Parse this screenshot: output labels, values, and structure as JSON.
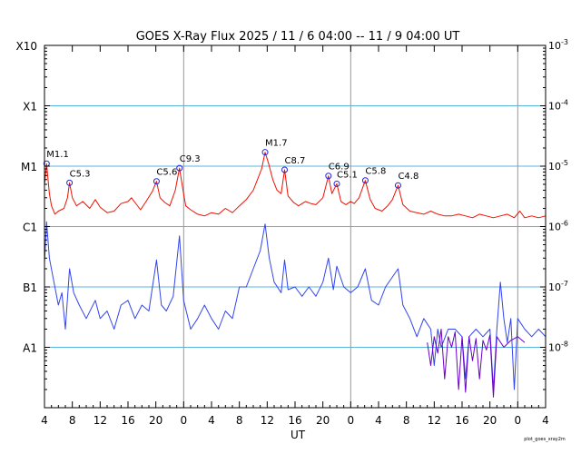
{
  "chart_data": {
    "type": "line",
    "title": "GOES X-Ray Flux   2025 / 11 /  6   04:00 -- 11 /  9   04:00   UT",
    "xlabel": "UT",
    "ylabel": "",
    "x_range_hours": [
      0,
      72
    ],
    "x_ticks": [
      "4",
      "8",
      "12",
      "16",
      "20",
      "0",
      "4",
      "8",
      "12",
      "16",
      "20",
      "0",
      "4",
      "8",
      "12",
      "16",
      "20",
      "0",
      "4"
    ],
    "day_boundaries_hours": [
      20,
      44,
      68
    ],
    "y_scale": "log",
    "ylim": [
      1e-09,
      0.001
    ],
    "flare_class_labels": [
      {
        "label": "X10",
        "value": 0.001
      },
      {
        "label": "X1",
        "value": 0.0001
      },
      {
        "label": "M1",
        "value": 1e-05
      },
      {
        "label": "C1",
        "value": 1e-06
      },
      {
        "label": "B1",
        "value": 1e-07
      },
      {
        "label": "A1",
        "value": 1e-08
      }
    ],
    "right_axis_labels": [
      {
        "base": "10",
        "exp": "-3",
        "value": 0.001
      },
      {
        "base": "10",
        "exp": "-4",
        "value": 0.0001
      },
      {
        "base": "10",
        "exp": "-5",
        "value": 1e-05
      },
      {
        "base": "10",
        "exp": "-6",
        "value": 1e-06
      },
      {
        "base": "10",
        "exp": "-7",
        "value": 1e-07
      },
      {
        "base": "10",
        "exp": "-8",
        "value": 1e-08
      }
    ],
    "grid": true,
    "series": [
      {
        "color": "#ee1100",
        "points": [
          [
            0,
            4.8e-06
          ],
          [
            0.3,
            1.1e-05
          ],
          [
            0.7,
            3.5e-06
          ],
          [
            1,
            2.2e-06
          ],
          [
            1.5,
            1.6e-06
          ],
          [
            2,
            1.8e-06
          ],
          [
            2.8,
            2e-06
          ],
          [
            3.3,
            3e-06
          ],
          [
            3.6,
            5.3e-06
          ],
          [
            4,
            3e-06
          ],
          [
            4.6,
            2.2e-06
          ],
          [
            5.5,
            2.6e-06
          ],
          [
            6.5,
            2e-06
          ],
          [
            7.3,
            2.8e-06
          ],
          [
            8,
            2.1e-06
          ],
          [
            9,
            1.7e-06
          ],
          [
            10,
            1.8e-06
          ],
          [
            11,
            2.4e-06
          ],
          [
            12,
            2.6e-06
          ],
          [
            12.5,
            3e-06
          ],
          [
            13,
            2.5e-06
          ],
          [
            13.8,
            1.9e-06
          ],
          [
            14.5,
            2.5e-06
          ],
          [
            15.5,
            3.8e-06
          ],
          [
            16.1,
            5.6e-06
          ],
          [
            16.6,
            3e-06
          ],
          [
            17.3,
            2.5e-06
          ],
          [
            18,
            2.2e-06
          ],
          [
            18.8,
            4e-06
          ],
          [
            19.4,
            9.3e-06
          ],
          [
            19.9,
            4e-06
          ],
          [
            20.3,
            2.2e-06
          ],
          [
            21,
            1.9e-06
          ],
          [
            22,
            1.6e-06
          ],
          [
            23,
            1.5e-06
          ],
          [
            24,
            1.7e-06
          ],
          [
            25,
            1.6e-06
          ],
          [
            26,
            2e-06
          ],
          [
            27,
            1.7e-06
          ],
          [
            28,
            2.2e-06
          ],
          [
            29,
            2.8e-06
          ],
          [
            30,
            4e-06
          ],
          [
            30.6,
            6e-06
          ],
          [
            31.2,
            9e-06
          ],
          [
            31.7,
            1.7e-05
          ],
          [
            32.2,
            1.1e-05
          ],
          [
            32.8,
            6e-06
          ],
          [
            33.4,
            4e-06
          ],
          [
            34,
            3.5e-06
          ],
          [
            34.5,
            8.7e-06
          ],
          [
            35,
            3.2e-06
          ],
          [
            35.8,
            2.5e-06
          ],
          [
            36.5,
            2.2e-06
          ],
          [
            37.5,
            2.6e-06
          ],
          [
            38.3,
            2.4e-06
          ],
          [
            39,
            2.3e-06
          ],
          [
            40,
            3e-06
          ],
          [
            40.8,
            6.9e-06
          ],
          [
            41.3,
            3.5e-06
          ],
          [
            42,
            5.1e-06
          ],
          [
            42.6,
            2.6e-06
          ],
          [
            43.3,
            2.3e-06
          ],
          [
            44,
            2.6e-06
          ],
          [
            44.5,
            2.4e-06
          ],
          [
            45.2,
            3e-06
          ],
          [
            46.1,
            5.8e-06
          ],
          [
            46.8,
            2.8e-06
          ],
          [
            47.5,
            2e-06
          ],
          [
            48.5,
            1.8e-06
          ],
          [
            49.3,
            2.2e-06
          ],
          [
            50,
            2.8e-06
          ],
          [
            50.8,
            4.8e-06
          ],
          [
            51.5,
            2.3e-06
          ],
          [
            52.5,
            1.8e-06
          ],
          [
            53.5,
            1.7e-06
          ],
          [
            54.5,
            1.6e-06
          ],
          [
            55.5,
            1.8e-06
          ],
          [
            56.5,
            1.6e-06
          ],
          [
            57.5,
            1.5e-06
          ],
          [
            58.5,
            1.5e-06
          ],
          [
            59.5,
            1.6e-06
          ],
          [
            60.5,
            1.5e-06
          ],
          [
            61.5,
            1.4e-06
          ],
          [
            62.5,
            1.6e-06
          ],
          [
            63.5,
            1.5e-06
          ],
          [
            64.5,
            1.4e-06
          ],
          [
            65.5,
            1.5e-06
          ],
          [
            66.5,
            1.6e-06
          ],
          [
            67.5,
            1.4e-06
          ],
          [
            68.3,
            1.8e-06
          ],
          [
            69,
            1.4e-06
          ],
          [
            70,
            1.5e-06
          ],
          [
            71,
            1.4e-06
          ],
          [
            72,
            1.5e-06
          ]
        ]
      },
      {
        "color": "#3344ee",
        "points": [
          [
            0,
            2.5e-07
          ],
          [
            0.3,
            1.2e-06
          ],
          [
            0.7,
            3e-07
          ],
          [
            1.2,
            1.5e-07
          ],
          [
            2,
            5e-08
          ],
          [
            2.5,
            8e-08
          ],
          [
            3,
            2e-08
          ],
          [
            3.6,
            2e-07
          ],
          [
            4.2,
            8e-08
          ],
          [
            5,
            5e-08
          ],
          [
            6,
            3e-08
          ],
          [
            7.3,
            6e-08
          ],
          [
            8,
            3e-08
          ],
          [
            9,
            4e-08
          ],
          [
            10,
            2e-08
          ],
          [
            11,
            5e-08
          ],
          [
            12,
            6e-08
          ],
          [
            13,
            3e-08
          ],
          [
            14,
            5e-08
          ],
          [
            15,
            4e-08
          ],
          [
            16.1,
            2.8e-07
          ],
          [
            16.8,
            5e-08
          ],
          [
            17.5,
            4e-08
          ],
          [
            18.5,
            7e-08
          ],
          [
            19.4,
            7e-07
          ],
          [
            20,
            6e-08
          ],
          [
            21,
            2e-08
          ],
          [
            22,
            3e-08
          ],
          [
            23,
            5e-08
          ],
          [
            24,
            3e-08
          ],
          [
            25,
            2e-08
          ],
          [
            26,
            4e-08
          ],
          [
            27,
            3e-08
          ],
          [
            28,
            1e-07
          ],
          [
            29,
            1e-07
          ],
          [
            30,
            2e-07
          ],
          [
            31,
            4e-07
          ],
          [
            31.7,
            1.1e-06
          ],
          [
            32.3,
            3e-07
          ],
          [
            33,
            1.2e-07
          ],
          [
            34,
            8e-08
          ],
          [
            34.5,
            2.8e-07
          ],
          [
            35,
            9e-08
          ],
          [
            36,
            1e-07
          ],
          [
            37,
            7e-08
          ],
          [
            38,
            1e-07
          ],
          [
            39,
            7e-08
          ],
          [
            40,
            1.2e-07
          ],
          [
            40.8,
            3e-07
          ],
          [
            41.5,
            9e-08
          ],
          [
            42,
            2.2e-07
          ],
          [
            43,
            1e-07
          ],
          [
            44,
            8e-08
          ],
          [
            45,
            1e-07
          ],
          [
            46.1,
            2e-07
          ],
          [
            47,
            6e-08
          ],
          [
            48,
            5e-08
          ],
          [
            49,
            1e-07
          ],
          [
            50.8,
            2e-07
          ],
          [
            51.5,
            5e-08
          ],
          [
            52.5,
            3e-08
          ],
          [
            53.5,
            1.5e-08
          ],
          [
            54.5,
            3e-08
          ],
          [
            55.5,
            2e-08
          ],
          [
            56,
            5e-09
          ],
          [
            56.5,
            2e-08
          ],
          [
            57,
            1e-08
          ],
          [
            58,
            2e-08
          ],
          [
            59,
            2e-08
          ],
          [
            60,
            1.5e-08
          ],
          [
            60.5,
            3e-09
          ],
          [
            61,
            1.5e-08
          ],
          [
            62,
            2e-08
          ],
          [
            63,
            1.5e-08
          ],
          [
            64,
            2e-08
          ],
          [
            64.5,
            2e-09
          ],
          [
            65,
            2e-08
          ],
          [
            65.5,
            1.2e-07
          ],
          [
            66,
            3e-08
          ],
          [
            66.5,
            1.2e-08
          ],
          [
            67,
            3e-08
          ],
          [
            67.5,
            2e-09
          ],
          [
            68,
            3e-08
          ],
          [
            69,
            2e-08
          ],
          [
            70,
            1.5e-08
          ],
          [
            71,
            2e-08
          ],
          [
            72,
            1.5e-08
          ]
        ]
      },
      {
        "color": "#6a00c8",
        "points": [
          [
            55,
            1.2e-08
          ],
          [
            55.5,
            5e-09
          ],
          [
            56,
            1.5e-08
          ],
          [
            56.5,
            8e-09
          ],
          [
            57,
            2e-08
          ],
          [
            57.5,
            3e-09
          ],
          [
            58,
            1.5e-08
          ],
          [
            58.5,
            1e-08
          ],
          [
            59,
            1.8e-08
          ],
          [
            59.5,
            2e-09
          ],
          [
            60,
            1.5e-08
          ],
          [
            60.5,
            1.8e-09
          ],
          [
            61,
            1.5e-08
          ],
          [
            61.5,
            6e-09
          ],
          [
            62,
            1.4e-08
          ],
          [
            62.5,
            3e-09
          ],
          [
            63,
            1.3e-08
          ],
          [
            63.5,
            9e-09
          ],
          [
            64,
            1.6e-08
          ],
          [
            64.5,
            1.5e-09
          ],
          [
            65,
            1.5e-08
          ],
          [
            66,
            1e-08
          ],
          [
            67,
            1.3e-08
          ],
          [
            68,
            1.5e-08
          ],
          [
            69,
            1.2e-08
          ]
        ]
      }
    ],
    "annotations": [
      {
        "text": "M1.1",
        "x": 0.3,
        "y": 1.1e-05
      },
      {
        "text": "C5.3",
        "x": 3.6,
        "y": 5.3e-06
      },
      {
        "text": "C5.6",
        "x": 16.1,
        "y": 5.6e-06
      },
      {
        "text": "C9.3",
        "x": 19.4,
        "y": 9.3e-06
      },
      {
        "text": "M1.7",
        "x": 31.7,
        "y": 1.7e-05
      },
      {
        "text": "C8.7",
        "x": 34.5,
        "y": 8.7e-06
      },
      {
        "text": "C6.9",
        "x": 40.8,
        "y": 6.9e-06
      },
      {
        "text": "C5.1",
        "x": 42.0,
        "y": 5.1e-06
      },
      {
        "text": "C5.8",
        "x": 46.1,
        "y": 5.8e-06
      },
      {
        "text": "C4.8",
        "x": 50.8,
        "y": 4.8e-06
      }
    ],
    "credit": "plot_goes_xray2m"
  }
}
